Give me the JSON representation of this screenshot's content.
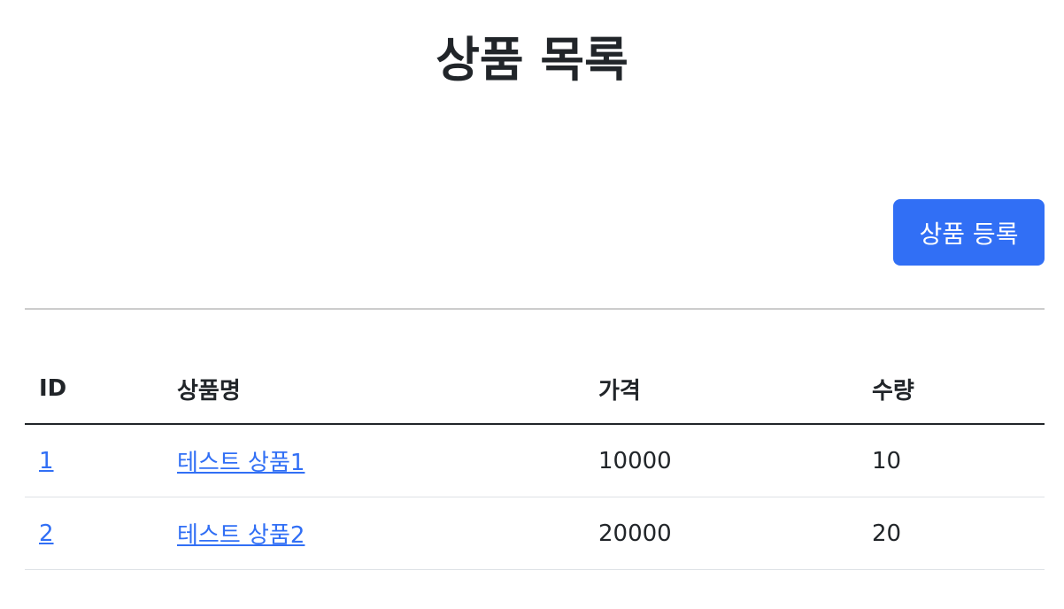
{
  "page": {
    "title": "상품 목록"
  },
  "toolbar": {
    "add_product_label": "상품 등록"
  },
  "colors": {
    "accent": "#316ff5",
    "text": "#212529"
  },
  "table": {
    "headers": [
      "ID",
      "상품명",
      "가격",
      "수량"
    ],
    "rows": [
      {
        "id": "1",
        "name": "테스트 상품1",
        "price": "10000",
        "quantity": "10"
      },
      {
        "id": "2",
        "name": "테스트 상품2",
        "price": "20000",
        "quantity": "20"
      }
    ]
  }
}
